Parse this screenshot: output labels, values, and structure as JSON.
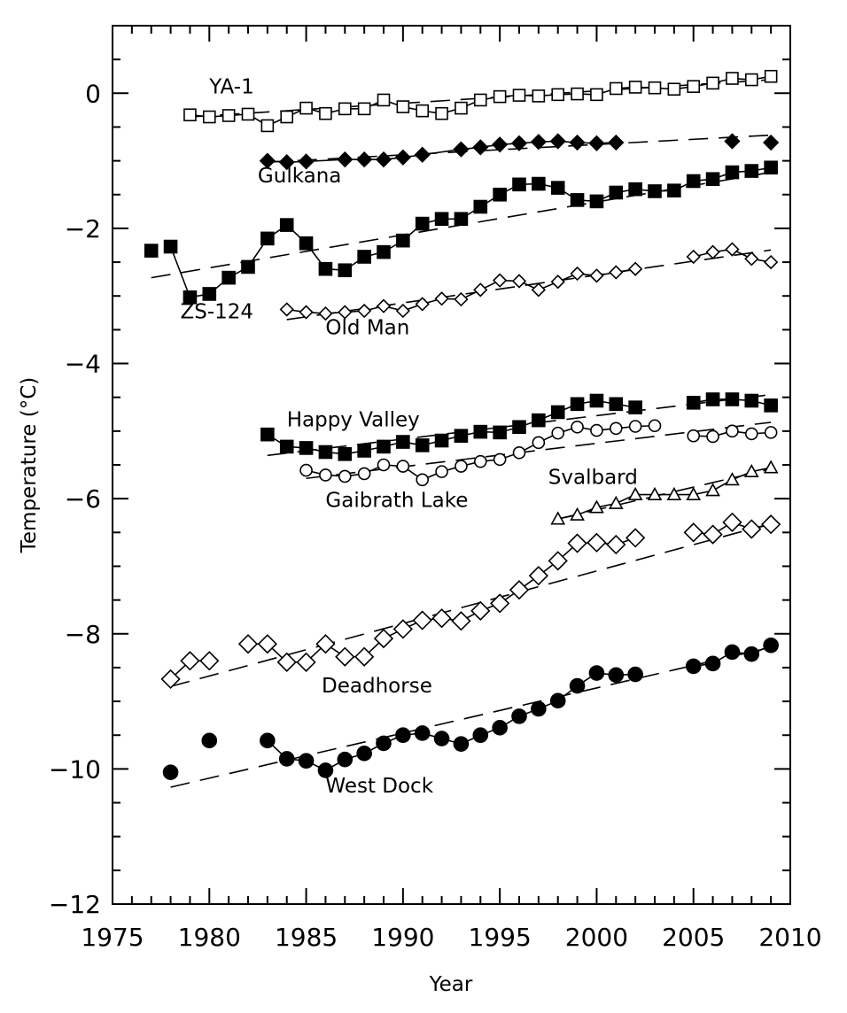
{
  "chart_data": {
    "type": "scatter",
    "title": "",
    "xlabel": "Year",
    "ylabel": "Temperature (°C)",
    "xlim": [
      1975,
      2010
    ],
    "ylim": [
      -12,
      1
    ],
    "x_ticks": [
      1975,
      1980,
      1985,
      1990,
      1995,
      2000,
      2005,
      2010
    ],
    "y_ticks": [
      0,
      -2,
      -4,
      -6,
      -8,
      -10,
      -12
    ],
    "x_tick_labels": [
      "1975",
      "1980",
      "1985",
      "1990",
      "1995",
      "2000",
      "2005",
      "2010"
    ],
    "y_tick_labels": [
      "0",
      "−2",
      "−4",
      "−6",
      "−8",
      "−10",
      "−12"
    ],
    "grid": false,
    "legend": "none",
    "series": [
      {
        "name": "YA-1",
        "marker": "open-square",
        "label_at": [
          1980,
          0.0
        ],
        "points": [
          [
            1979,
            -0.32
          ],
          [
            1980,
            -0.35
          ],
          [
            1981,
            -0.33
          ],
          [
            1982,
            -0.31
          ],
          [
            1983,
            -0.48
          ],
          [
            1984,
            -0.35
          ],
          [
            1985,
            -0.22
          ],
          [
            1986,
            -0.3
          ],
          [
            1987,
            -0.23
          ],
          [
            1988,
            -0.23
          ],
          [
            1989,
            -0.1
          ],
          [
            1990,
            -0.2
          ],
          [
            1991,
            -0.26
          ],
          [
            1992,
            -0.3
          ],
          [
            1993,
            -0.22
          ],
          [
            1994,
            -0.1
          ],
          [
            1995,
            -0.05
          ],
          [
            1996,
            -0.03
          ],
          [
            1997,
            -0.04
          ],
          [
            1998,
            -0.02
          ],
          [
            1999,
            -0.01
          ],
          [
            2000,
            -0.02
          ],
          [
            2001,
            0.07
          ],
          [
            2002,
            0.09
          ],
          [
            2003,
            0.08
          ],
          [
            2004,
            0.06
          ],
          [
            2005,
            0.1
          ],
          [
            2006,
            0.15
          ],
          [
            2007,
            0.22
          ],
          [
            2008,
            0.2
          ],
          [
            2009,
            0.25
          ]
        ],
        "segments": [
          [
            1979,
            2009
          ]
        ],
        "trend": [
          [
            1979,
            -0.35
          ],
          [
            2009,
            0.2
          ]
        ]
      },
      {
        "name": "Gulkana",
        "marker": "filled-diamond",
        "label_at": [
          1982.5,
          -1.32
        ],
        "points": [
          [
            1983,
            -1.0
          ],
          [
            1984,
            -1.02
          ],
          [
            1985,
            -1.01
          ],
          [
            1987,
            -0.98
          ],
          [
            1988,
            -0.98
          ],
          [
            1989,
            -0.98
          ],
          [
            1990,
            -0.95
          ],
          [
            1991,
            -0.91
          ],
          [
            1993,
            -0.83
          ],
          [
            1994,
            -0.8
          ],
          [
            1995,
            -0.76
          ],
          [
            1996,
            -0.74
          ],
          [
            1997,
            -0.72
          ],
          [
            1998,
            -0.71
          ],
          [
            1999,
            -0.73
          ],
          [
            2000,
            -0.74
          ],
          [
            2001,
            -0.73
          ],
          [
            2007,
            -0.71
          ],
          [
            2009,
            -0.73
          ]
        ],
        "segments": [
          [
            1983,
            2001
          ]
        ],
        "trend": [
          [
            1983,
            -1.02
          ],
          [
            2009,
            -0.62
          ]
        ]
      },
      {
        "name": "ZS-124",
        "marker": "filled-square",
        "label_at": [
          1978.5,
          -3.33
        ],
        "points": [
          [
            1977,
            -2.33
          ],
          [
            1978,
            -2.27
          ],
          [
            1979,
            -3.02
          ],
          [
            1980,
            -2.97
          ],
          [
            1981,
            -2.73
          ],
          [
            1982,
            -2.57
          ],
          [
            1983,
            -2.15
          ],
          [
            1984,
            -1.95
          ],
          [
            1985,
            -2.22
          ],
          [
            1986,
            -2.6
          ],
          [
            1987,
            -2.62
          ],
          [
            1988,
            -2.42
          ],
          [
            1989,
            -2.35
          ],
          [
            1990,
            -2.18
          ],
          [
            1991,
            -1.93
          ],
          [
            1992,
            -1.86
          ],
          [
            1993,
            -1.86
          ],
          [
            1994,
            -1.68
          ],
          [
            1995,
            -1.5
          ],
          [
            1996,
            -1.35
          ],
          [
            1997,
            -1.34
          ],
          [
            1998,
            -1.4
          ],
          [
            1999,
            -1.58
          ],
          [
            2000,
            -1.6
          ],
          [
            2001,
            -1.47
          ],
          [
            2002,
            -1.42
          ],
          [
            2003,
            -1.45
          ],
          [
            2004,
            -1.44
          ],
          [
            2005,
            -1.3
          ],
          [
            2006,
            -1.27
          ],
          [
            2007,
            -1.17
          ],
          [
            2008,
            -1.15
          ],
          [
            2009,
            -1.1
          ]
        ],
        "segments": [
          [
            1978,
            2009
          ]
        ],
        "trend": [
          [
            1977,
            -2.73
          ],
          [
            2009,
            -1.17
          ]
        ]
      },
      {
        "name": "Old Man",
        "marker": "open-diamond",
        "label_at": [
          1986,
          -3.57
        ],
        "points": [
          [
            1984,
            -3.2
          ],
          [
            1985,
            -3.24
          ],
          [
            1986,
            -3.26
          ],
          [
            1987,
            -3.24
          ],
          [
            1988,
            -3.22
          ],
          [
            1989,
            -3.15
          ],
          [
            1990,
            -3.22
          ],
          [
            1991,
            -3.12
          ],
          [
            1992,
            -3.04
          ],
          [
            1993,
            -3.05
          ],
          [
            1994,
            -2.91
          ],
          [
            1995,
            -2.77
          ],
          [
            1996,
            -2.78
          ],
          [
            1997,
            -2.91
          ],
          [
            1998,
            -2.79
          ],
          [
            1999,
            -2.67
          ],
          [
            2000,
            -2.7
          ],
          [
            2001,
            -2.65
          ],
          [
            2002,
            -2.6
          ],
          [
            2005,
            -2.42
          ],
          [
            2006,
            -2.35
          ],
          [
            2007,
            -2.31
          ],
          [
            2008,
            -2.45
          ],
          [
            2009,
            -2.5
          ]
        ],
        "segments": [
          [
            1984,
            2002
          ],
          [
            2005,
            2009
          ]
        ],
        "trend": [
          [
            1984,
            -3.35
          ],
          [
            2009,
            -2.32
          ]
        ]
      },
      {
        "name": "Happy Valley",
        "marker": "filled-square",
        "label_at": [
          1984,
          -4.93
        ],
        "points": [
          [
            1983,
            -5.05
          ],
          [
            1984,
            -5.23
          ],
          [
            1985,
            -5.25
          ],
          [
            1986,
            -5.31
          ],
          [
            1987,
            -5.34
          ],
          [
            1988,
            -5.29
          ],
          [
            1989,
            -5.23
          ],
          [
            1990,
            -5.16
          ],
          [
            1991,
            -5.21
          ],
          [
            1992,
            -5.14
          ],
          [
            1993,
            -5.07
          ],
          [
            1994,
            -5.01
          ],
          [
            1995,
            -5.02
          ],
          [
            1996,
            -4.94
          ],
          [
            1997,
            -4.84
          ],
          [
            1998,
            -4.72
          ],
          [
            1999,
            -4.6
          ],
          [
            2000,
            -4.55
          ],
          [
            2001,
            -4.6
          ],
          [
            2002,
            -4.65
          ],
          [
            2005,
            -4.58
          ],
          [
            2006,
            -4.53
          ],
          [
            2007,
            -4.53
          ],
          [
            2008,
            -4.55
          ],
          [
            2009,
            -4.62
          ]
        ],
        "segments": [
          [
            1983,
            2002
          ],
          [
            2005,
            2009
          ]
        ],
        "trend": [
          [
            1983,
            -5.36
          ],
          [
            2009,
            -4.46
          ]
        ]
      },
      {
        "name": "Gaibrath Lake",
        "marker": "open-circle",
        "label_at": [
          1986,
          -6.12
        ],
        "points": [
          [
            1985,
            -5.58
          ],
          [
            1986,
            -5.65
          ],
          [
            1987,
            -5.67
          ],
          [
            1988,
            -5.63
          ],
          [
            1989,
            -5.5
          ],
          [
            1990,
            -5.52
          ],
          [
            1991,
            -5.72
          ],
          [
            1992,
            -5.6
          ],
          [
            1993,
            -5.52
          ],
          [
            1994,
            -5.45
          ],
          [
            1995,
            -5.42
          ],
          [
            1996,
            -5.32
          ],
          [
            1997,
            -5.17
          ],
          [
            1998,
            -5.03
          ],
          [
            1999,
            -4.94
          ],
          [
            2000,
            -4.99
          ],
          [
            2001,
            -4.96
          ],
          [
            2002,
            -4.93
          ],
          [
            2003,
            -4.92
          ],
          [
            2005,
            -5.07
          ],
          [
            2006,
            -5.08
          ],
          [
            2007,
            -5.0
          ],
          [
            2008,
            -5.04
          ],
          [
            2009,
            -5.02
          ]
        ],
        "segments": [
          [
            1985,
            2003
          ],
          [
            2005,
            2009
          ]
        ],
        "trend": [
          [
            1985,
            -5.7
          ],
          [
            2009,
            -4.87
          ]
        ]
      },
      {
        "name": "Svalbard",
        "marker": "open-triangle",
        "label_at": [
          1997.5,
          -5.78
        ],
        "points": [
          [
            1998,
            -6.3
          ],
          [
            1999,
            -6.24
          ],
          [
            2000,
            -6.13
          ],
          [
            2001,
            -6.07
          ],
          [
            2002,
            -5.94
          ],
          [
            2003,
            -5.94
          ],
          [
            2004,
            -5.94
          ],
          [
            2005,
            -5.94
          ],
          [
            2006,
            -5.88
          ],
          [
            2007,
            -5.72
          ],
          [
            2008,
            -5.6
          ],
          [
            2009,
            -5.54
          ]
        ],
        "segments": [
          [
            1998,
            2009
          ]
        ],
        "trend": [
          [
            1998,
            -6.3
          ],
          [
            2009,
            -5.56
          ]
        ]
      },
      {
        "name": "Deadhorse",
        "marker": "open-diamond",
        "label_at": [
          1985.8,
          -8.87
        ],
        "points": [
          [
            1978,
            -8.67
          ],
          [
            1979,
            -8.4
          ],
          [
            1980,
            -8.4
          ],
          [
            1982,
            -8.15
          ],
          [
            1983,
            -8.15
          ],
          [
            1984,
            -8.42
          ],
          [
            1985,
            -8.42
          ],
          [
            1986,
            -8.15
          ],
          [
            1987,
            -8.34
          ],
          [
            1988,
            -8.34
          ],
          [
            1989,
            -8.07
          ],
          [
            1990,
            -7.93
          ],
          [
            1991,
            -7.8
          ],
          [
            1992,
            -7.77
          ],
          [
            1993,
            -7.81
          ],
          [
            1994,
            -7.66
          ],
          [
            1995,
            -7.55
          ],
          [
            1996,
            -7.35
          ],
          [
            1997,
            -7.14
          ],
          [
            1998,
            -6.92
          ],
          [
            1999,
            -6.66
          ],
          [
            2000,
            -6.65
          ],
          [
            2001,
            -6.68
          ],
          [
            2002,
            -6.58
          ],
          [
            2005,
            -6.5
          ],
          [
            2006,
            -6.53
          ],
          [
            2007,
            -6.35
          ],
          [
            2008,
            -6.45
          ],
          [
            2009,
            -6.38
          ]
        ],
        "segments": [
          [
            1978,
            1980
          ],
          [
            1982,
            2002
          ],
          [
            2005,
            2009
          ]
        ],
        "trend": [
          [
            1978,
            -8.78
          ],
          [
            2009,
            -6.37
          ]
        ]
      },
      {
        "name": "West Dock",
        "marker": "filled-circle",
        "label_at": [
          1986,
          -10.35
        ],
        "points": [
          [
            1978,
            -10.05
          ],
          [
            1980,
            -9.58
          ],
          [
            1983,
            -9.58
          ],
          [
            1984,
            -9.85
          ],
          [
            1985,
            -9.88
          ],
          [
            1986,
            -10.02
          ],
          [
            1987,
            -9.86
          ],
          [
            1988,
            -9.77
          ],
          [
            1989,
            -9.62
          ],
          [
            1990,
            -9.5
          ],
          [
            1991,
            -9.47
          ],
          [
            1992,
            -9.55
          ],
          [
            1993,
            -9.63
          ],
          [
            1994,
            -9.5
          ],
          [
            1995,
            -9.39
          ],
          [
            1996,
            -9.22
          ],
          [
            1997,
            -9.11
          ],
          [
            1998,
            -8.99
          ],
          [
            1999,
            -8.77
          ],
          [
            2000,
            -8.58
          ],
          [
            2001,
            -8.61
          ],
          [
            2002,
            -8.6
          ],
          [
            2005,
            -8.48
          ],
          [
            2006,
            -8.44
          ],
          [
            2007,
            -8.27
          ],
          [
            2008,
            -8.3
          ],
          [
            2009,
            -8.17
          ]
        ],
        "segments": [
          [
            1983,
            2002
          ],
          [
            2005,
            2009
          ]
        ],
        "trend": [
          [
            1978,
            -10.27
          ],
          [
            2009,
            -8.2
          ]
        ]
      }
    ]
  }
}
